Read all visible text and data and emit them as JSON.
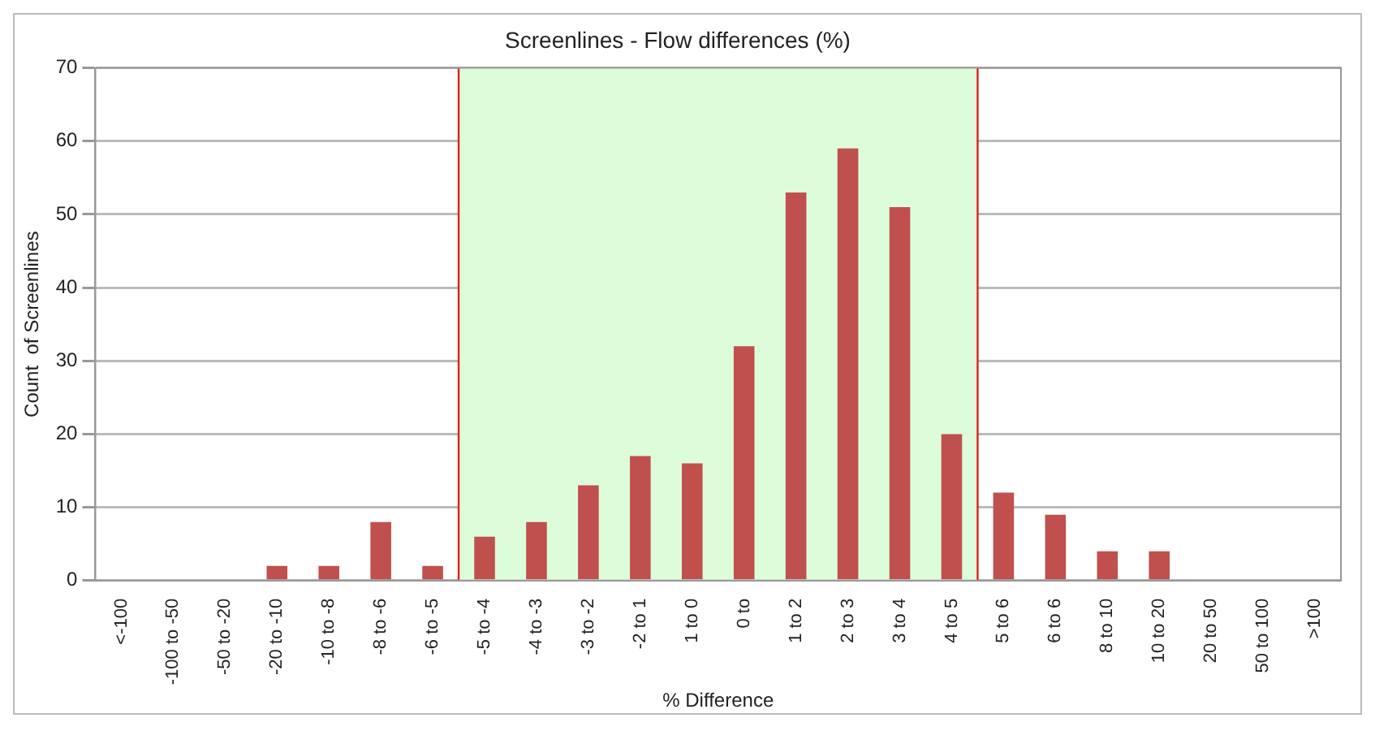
{
  "chart_data": {
    "type": "bar",
    "title": "Screenlines - Flow differences (%)",
    "xlabel": "% Difference",
    "ylabel": "Count  of Screenlines",
    "categories": [
      "<-100",
      "-100 to -50",
      "-50 to -20",
      "-20 to -10",
      "-10 to -8",
      "-8 to -6",
      "-6 to -5",
      "-5 to -4",
      "-4 to -3",
      "-3 to -2",
      "-2 to 1",
      "1 to 0",
      "0 to",
      "1 to 2",
      "2 to 3",
      "3 to 4",
      "4 to 5",
      "5 to 6",
      "6 to 6",
      "8 to 10",
      "10 to 20",
      "20 to 50",
      "50 to 100",
      ">100"
    ],
    "values": [
      0,
      0,
      0,
      2,
      2,
      8,
      2,
      6,
      8,
      13,
      17,
      16,
      32,
      53,
      59,
      51,
      20,
      12,
      9,
      4,
      4,
      0,
      0,
      0
    ],
    "color": "#c0504d",
    "ylim": [
      0,
      70
    ],
    "yticks": [
      0,
      10,
      20,
      30,
      40,
      50,
      60,
      70
    ],
    "grid": "y",
    "bands": [
      {
        "axis": "x",
        "from": "-5 to -4",
        "to": "4 to 5",
        "color": "#ddfcd9"
      }
    ]
  }
}
